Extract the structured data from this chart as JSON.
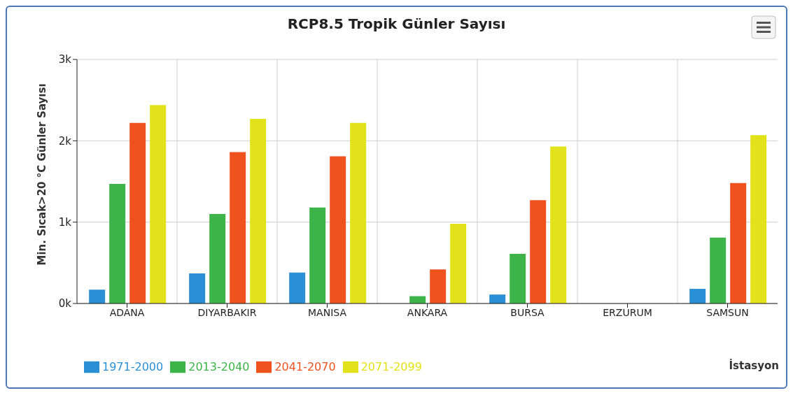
{
  "chart_data": {
    "type": "bar",
    "title": "RCP8.5 Tropik Günler Sayısı",
    "xlabel": "İstasyon",
    "ylabel": "Min. Sıcak>20 °C Günler Sayısı",
    "categories": [
      "ADANA",
      "DIYARBAKIR",
      "MANISA",
      "ANKARA",
      "BURSA",
      "ERZURUM",
      "SAMSUN"
    ],
    "series": [
      {
        "name": "1971-2000",
        "color": "#2b8fd6",
        "values": [
          170,
          370,
          380,
          0,
          110,
          0,
          180
        ]
      },
      {
        "name": "2013-2040",
        "color": "#3cb44a",
        "values": [
          1470,
          1100,
          1180,
          90,
          610,
          0,
          810
        ]
      },
      {
        "name": "2041-2070",
        "color": "#f0521e",
        "values": [
          2220,
          1860,
          1810,
          420,
          1270,
          0,
          1480
        ]
      },
      {
        "name": "2071-2099",
        "color": "#e2e21a",
        "values": [
          2440,
          2270,
          2220,
          980,
          1930,
          0,
          2070
        ]
      }
    ],
    "ylim": [
      0,
      3000
    ],
    "yticks": [
      {
        "value": 0,
        "label": "0k"
      },
      {
        "value": 1000,
        "label": "1k"
      },
      {
        "value": 2000,
        "label": "2k"
      },
      {
        "value": 3000,
        "label": "3k"
      }
    ],
    "grid": true,
    "legend": "bottom left"
  }
}
